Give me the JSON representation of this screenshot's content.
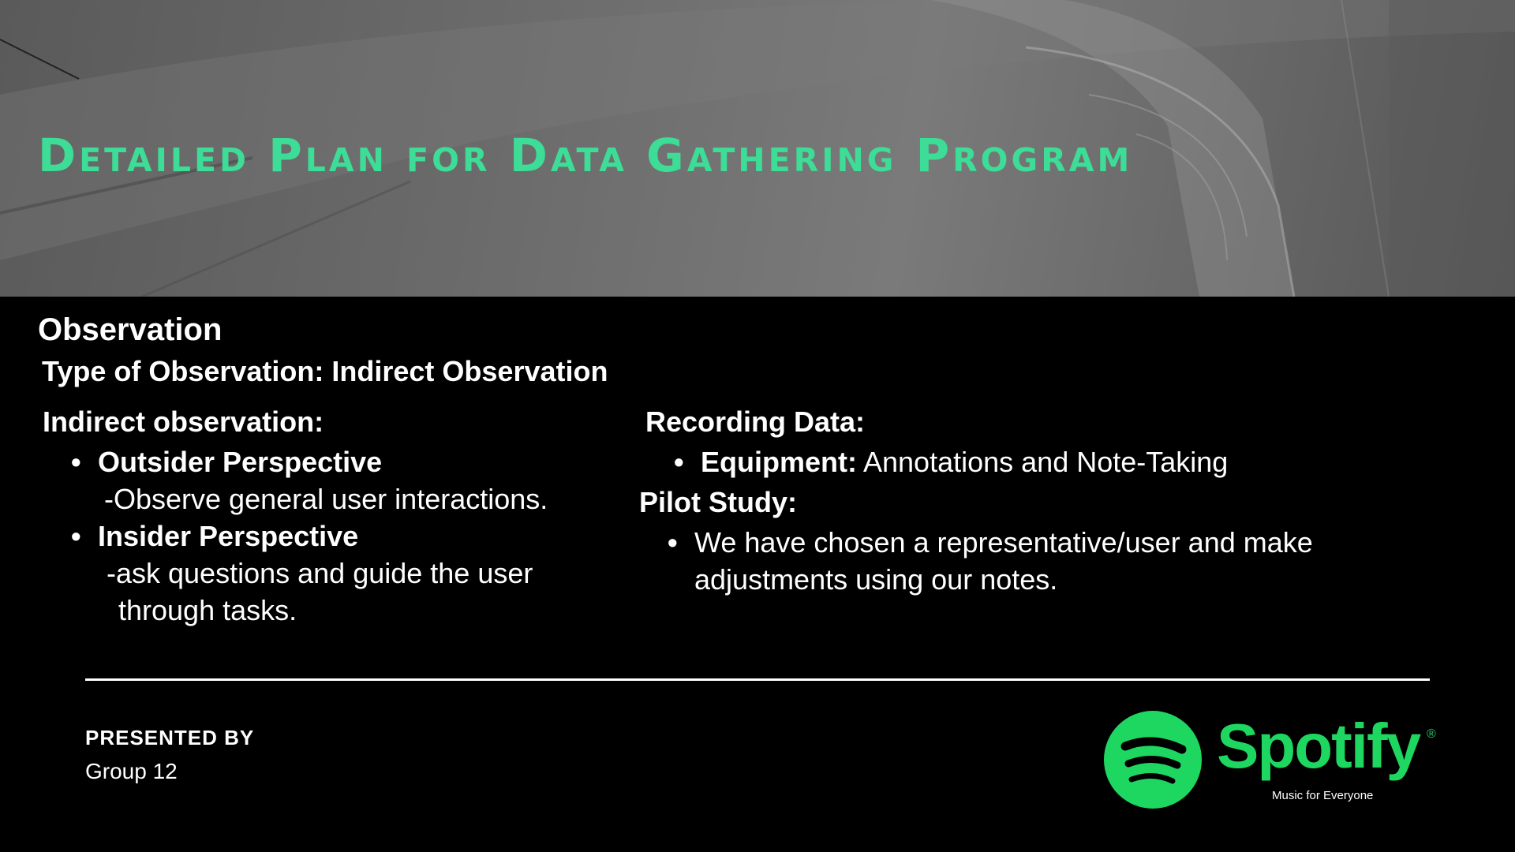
{
  "slide": {
    "title": "Detailed Plan for Data Gathering Program",
    "heading": "Observation",
    "type_line": "Type of Observation: Indirect Observation"
  },
  "left_column": {
    "heading": "Indirect observation:",
    "items": [
      {
        "label": "Outsider Perspective",
        "detail": "-Observe general user interactions."
      },
      {
        "label": "Insider Perspective",
        "detail_line1": "-ask questions and guide the user",
        "detail_line2": "through tasks."
      }
    ]
  },
  "right_column": {
    "recording": {
      "heading": "Recording Data:",
      "label": "Equipment:",
      "value": "Annotations and Note-Taking"
    },
    "pilot": {
      "heading": "Pilot Study:",
      "line1": "We have chosen a representative/user and make",
      "line2": "adjustments using our notes."
    }
  },
  "footer": {
    "presented_label": "PRESENTED BY",
    "group": "Group 12"
  },
  "logo": {
    "wordmark": "Spotify",
    "registered": "®",
    "tagline": "Music for Everyone",
    "color": "#1ed760"
  },
  "colors": {
    "title": "#3ddc97",
    "background": "#000000",
    "text": "#ffffff"
  }
}
